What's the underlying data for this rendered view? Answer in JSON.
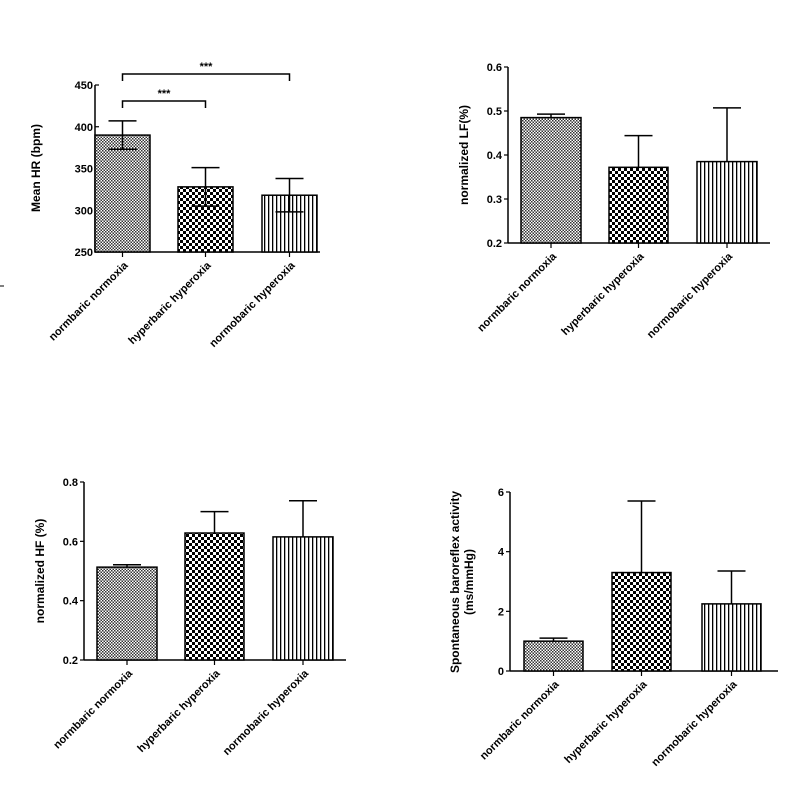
{
  "chart_data": [
    {
      "type": "bar",
      "ylabel": "Mean HR (bpm)",
      "categories": [
        "normbaric normoxia",
        "hyperbaric hyperoxia",
        "normobaric hyperoxia"
      ],
      "values": [
        390,
        328,
        318
      ],
      "errors": [
        17,
        23,
        20
      ],
      "ylim": [
        250,
        450
      ],
      "yticks": [
        250,
        300,
        350,
        400,
        450
      ],
      "significance": [
        {
          "from": 0,
          "to": 1,
          "label": "***"
        },
        {
          "from": 0,
          "to": 2,
          "label": "***"
        }
      ]
    },
    {
      "type": "bar",
      "ylabel": "normalized LF(%)",
      "categories": [
        "normbaric normoxia",
        "hyperbaric hyperoxia",
        "normobaric hyperoxia"
      ],
      "values": [
        0.485,
        0.372,
        0.385
      ],
      "errors": [
        0.008,
        0.072,
        0.122
      ],
      "ylim": [
        0.2,
        0.6
      ],
      "yticks": [
        "0.2",
        "0.3",
        "0.4",
        "0.5",
        "0.6"
      ]
    },
    {
      "type": "bar",
      "ylabel": "normalized HF (%)",
      "categories": [
        "normbaric normoxia",
        "hyperbaric hyperoxia",
        "normobaric hyperoxia"
      ],
      "values": [
        0.513,
        0.628,
        0.615
      ],
      "errors": [
        0.008,
        0.072,
        0.122
      ],
      "ylim": [
        0.2,
        0.8
      ],
      "yticks": [
        "0.2",
        "0.4",
        "0.6",
        "0.8"
      ]
    },
    {
      "type": "bar",
      "ylabel": "Spontaneous baroreflex activity (ms/mmHg)",
      "ylabel_lines": [
        "Spontaneous baroreflex activity",
        "(ms/mmHg)"
      ],
      "categories": [
        "normbaric normoxia",
        "hyperbaric hyperoxia",
        "normobaric hyperoxia"
      ],
      "values": [
        1.0,
        3.3,
        2.25
      ],
      "errors": [
        0.1,
        2.4,
        1.1
      ],
      "ylim": [
        0,
        6
      ],
      "yticks": [
        "0",
        "2",
        "4",
        "6"
      ]
    }
  ]
}
